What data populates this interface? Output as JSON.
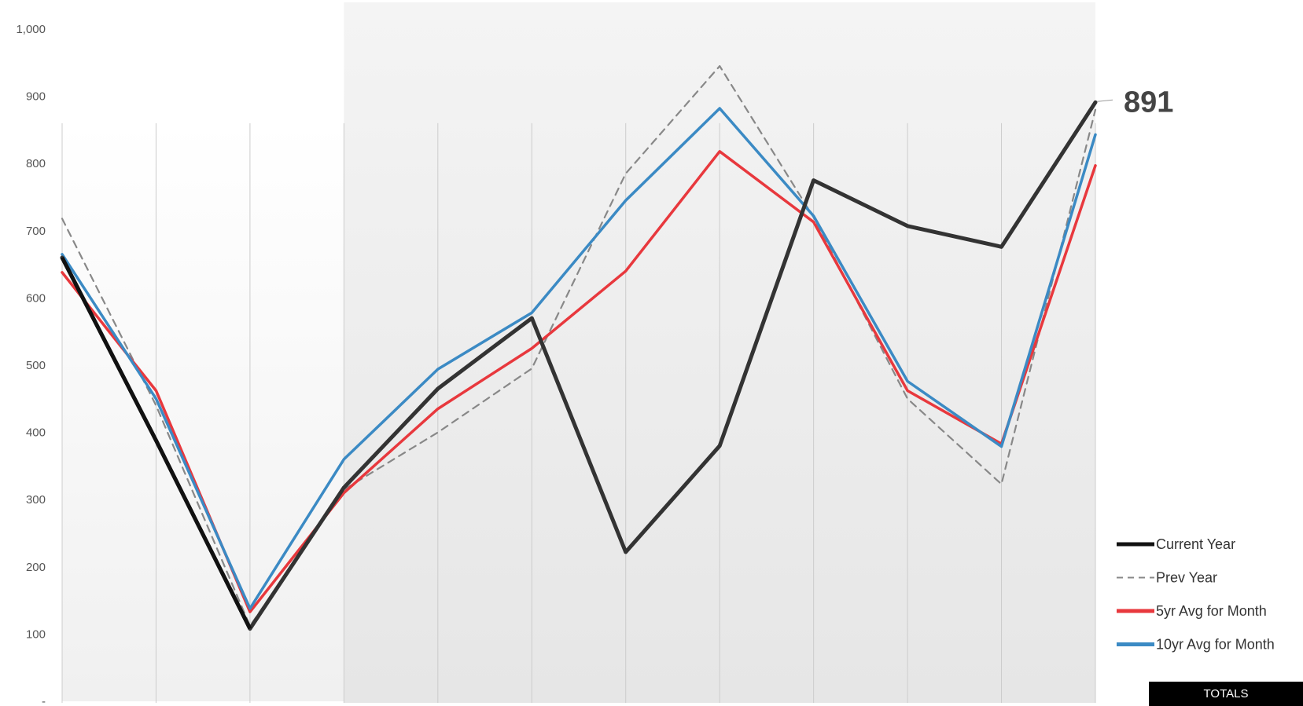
{
  "chart_data": {
    "type": "line",
    "title": "",
    "xlabel": "",
    "ylabel": "",
    "ylim": [
      0,
      1000
    ],
    "yticks": [
      0,
      100,
      200,
      300,
      400,
      500,
      600,
      700,
      800,
      900,
      1000
    ],
    "ytick_labels": [
      "-",
      "100",
      "200",
      "300",
      "400",
      "500",
      "600",
      "700",
      "800",
      "900",
      "1,000"
    ],
    "x": [
      1,
      2,
      3,
      4,
      5,
      6,
      7,
      8,
      9,
      10,
      11,
      12
    ],
    "grid": "vertical",
    "legend_position": "right",
    "shaded_region": {
      "from_x": 4,
      "to_x": 12
    },
    "series": [
      {
        "name": "Current Year",
        "color": "#333333",
        "style": "solid",
        "values": [
          660,
          388,
          108,
          318,
          465,
          570,
          222,
          380,
          775,
          707,
          676,
          891
        ]
      },
      {
        "name": "Prev Year",
        "color": "#888888",
        "style": "dashed",
        "values": [
          718,
          440,
          112,
          315,
          400,
          495,
          785,
          945,
          720,
          450,
          323,
          880
        ]
      },
      {
        "name": "5yr Avg for Month",
        "color": "#e8383d",
        "style": "solid",
        "values": [
          638,
          462,
          133,
          310,
          435,
          525,
          640,
          818,
          713,
          462,
          383,
          797
        ]
      },
      {
        "name": "10yr Avg for Month",
        "color": "#3b8ac4",
        "style": "solid",
        "values": [
          665,
          450,
          138,
          360,
          494,
          578,
          745,
          882,
          722,
          476,
          379,
          843
        ]
      }
    ],
    "end_label": "891"
  },
  "totals_label": "TOTALS"
}
